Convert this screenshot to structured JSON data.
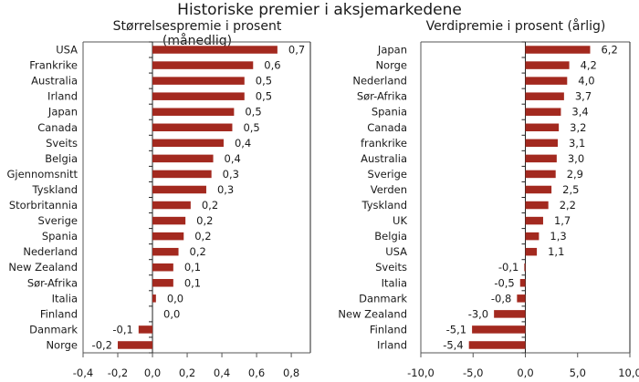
{
  "title": "Historiske premier i aksjemarkedene",
  "colors": {
    "bar": "#a3291f",
    "axis": "#555555"
  },
  "chart_data": [
    {
      "type": "bar",
      "orientation": "horizontal",
      "title": "Størrelsespremie i prosent (månedlig)",
      "categories": [
        "USA",
        "Frankrike",
        "Australia",
        "Irland",
        "Japan",
        "Canada",
        "Sveits",
        "Belgia",
        "Gjennomsnitt",
        "Tyskland",
        "Storbritannia",
        "Sverige",
        "Spania",
        "Nederland",
        "New Zealand",
        "Sør-Afrika",
        "Italia",
        "Finland",
        "Danmark",
        "Norge"
      ],
      "values": [
        0.72,
        0.58,
        0.53,
        0.53,
        0.47,
        0.46,
        0.41,
        0.35,
        0.34,
        0.31,
        0.22,
        0.19,
        0.18,
        0.15,
        0.12,
        0.12,
        0.02,
        0.0,
        -0.08,
        -0.2
      ],
      "labels": [
        "0,7",
        "0,6",
        "0,5",
        "0,5",
        "0,5",
        "0,5",
        "0,4",
        "0,4",
        "0,3",
        "0,3",
        "0,2",
        "0,2",
        "0,2",
        "0,2",
        "0,1",
        "0,1",
        "0,0",
        "0,0",
        "-0,1",
        "-0,2"
      ],
      "xlim": [
        -0.4,
        0.91
      ],
      "ticks": [
        -0.4,
        -0.2,
        0.0,
        0.2,
        0.4,
        0.6,
        0.8
      ],
      "tick_labels": [
        "-0,4",
        "-0,2",
        "0,0",
        "0,2",
        "0,4",
        "0,6",
        "0,8"
      ]
    },
    {
      "type": "bar",
      "orientation": "horizontal",
      "title": "Verdipremie i prosent (årlig)",
      "categories": [
        "Japan",
        "Norge",
        "Nederland",
        "Sør-Afrika",
        "Spania",
        "Canada",
        "frankrike",
        "Australia",
        "Sverige",
        "Verden",
        "Tyskland",
        "UK",
        "Belgia",
        "USA",
        "Sveits",
        "Italia",
        "Danmark",
        "New Zealand",
        "Finland",
        "Irland"
      ],
      "values": [
        6.2,
        4.2,
        4.0,
        3.7,
        3.4,
        3.2,
        3.1,
        3.0,
        2.9,
        2.5,
        2.2,
        1.7,
        1.3,
        1.1,
        -0.1,
        -0.5,
        -0.8,
        -3.0,
        -5.1,
        -5.4
      ],
      "labels": [
        "6,2",
        "4,2",
        "4,0",
        "3,7",
        "3,4",
        "3,2",
        "3,1",
        "3,0",
        "2,9",
        "2,5",
        "2,2",
        "1,7",
        "1,3",
        "1,1",
        "-0,1",
        "-0,5",
        "-0,8",
        "-3,0",
        "-5,1",
        "-5,4"
      ],
      "xlim": [
        -10,
        10
      ],
      "ticks": [
        -10,
        -5,
        0,
        5,
        10
      ],
      "tick_labels": [
        "-10,0",
        "-5,0",
        "0,0",
        "5,0",
        "10,0"
      ]
    }
  ]
}
